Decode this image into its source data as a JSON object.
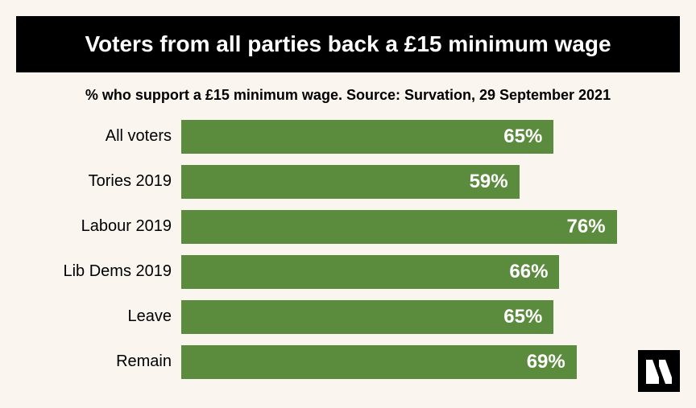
{
  "background_color": "#faf5ee",
  "title": {
    "text": "Voters from all parties back a £15 minimum wage",
    "background_color": "#000000",
    "text_color": "#ffffff",
    "font_size": 28
  },
  "subtitle": {
    "text": "% who support a £15 minimum wage. Source: Survation, 29 September 2021",
    "text_color": "#000000",
    "font_size": 18
  },
  "chart": {
    "type": "bar",
    "orientation": "horizontal",
    "bar_color": "#5b8c3e",
    "value_text_color": "#ffffff",
    "label_text_color": "#000000",
    "label_font_size": 20,
    "value_font_size": 24,
    "max_value": 80,
    "bars": [
      {
        "label": "All voters",
        "value": 65
      },
      {
        "label": "Tories 2019",
        "value": 59
      },
      {
        "label": "Labour 2019",
        "value": 76
      },
      {
        "label": "Lib Dems 2019",
        "value": 66
      },
      {
        "label": "Leave",
        "value": 65
      },
      {
        "label": "Remain",
        "value": 69
      }
    ]
  },
  "logo": {
    "background_color": "#000000",
    "foreground_color": "#ffffff"
  }
}
